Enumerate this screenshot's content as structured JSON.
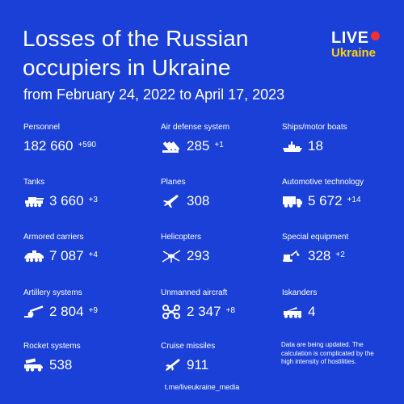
{
  "header": {
    "title": "Losses of the Russian occupiers in Ukraine",
    "subtitle": "from February 24, 2022 to April 17, 2023"
  },
  "logo": {
    "live": "LIVE",
    "ukraine": "Ukraine"
  },
  "colors": {
    "background": "#1b40d8",
    "text": "#ffffff",
    "logo_dot": "#ff2e2e",
    "logo_ukraine": "#ffd20a"
  },
  "stats": [
    {
      "label": "Personnel",
      "value": "182 660",
      "delta": "+590",
      "icon": ""
    },
    {
      "label": "Air defense system",
      "value": "285",
      "delta": "+1",
      "icon": "air-defense-icon"
    },
    {
      "label": "Ships/motor boats",
      "value": "18",
      "delta": "",
      "icon": "ship-icon"
    },
    {
      "label": "Tanks",
      "value": "3 660",
      "delta": "+3",
      "icon": "tank-icon"
    },
    {
      "label": "Planes",
      "value": "308",
      "delta": "",
      "icon": "plane-icon"
    },
    {
      "label": "Automotive technology",
      "value": "5 672",
      "delta": "+14",
      "icon": "truck-icon"
    },
    {
      "label": "Armored carriers",
      "value": "7 087",
      "delta": "+4",
      "icon": "armored-carrier-icon"
    },
    {
      "label": "Helicopters",
      "value": "293",
      "delta": "",
      "icon": "helicopter-icon"
    },
    {
      "label": "Special equipment",
      "value": "328",
      "delta": "+2",
      "icon": "excavator-icon"
    },
    {
      "label": "Artillery systems",
      "value": "2 804",
      "delta": "+9",
      "icon": "artillery-icon"
    },
    {
      "label": "Unmanned aircraft",
      "value": "2 347",
      "delta": "+8",
      "icon": "drone-icon"
    },
    {
      "label": "Iskanders",
      "value": "4",
      "delta": "",
      "icon": "missile-launcher-icon"
    },
    {
      "label": "Rocket systems",
      "value": "538",
      "delta": "",
      "icon": "rocket-system-icon"
    },
    {
      "label": "Cruise missiles",
      "value": "911",
      "delta": "",
      "icon": "cruise-missile-icon"
    }
  ],
  "note": "Data are being updated. The calculation is complicated by the high intensity of hostilities.",
  "footer": "t.me/liveukraine_media"
}
